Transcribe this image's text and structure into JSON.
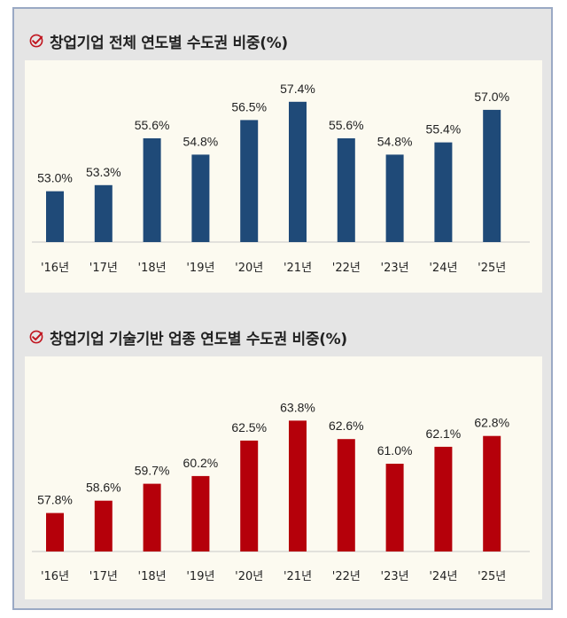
{
  "colors": {
    "series1": "#1f4a78",
    "series2": "#b5000a",
    "panel_bg": "#fcfaf0",
    "frame_bg": "#e5e5e5",
    "check_icon": "#c0141e"
  },
  "icons": {
    "title_icon": "check-circle-icon"
  },
  "chart_data": [
    {
      "type": "bar",
      "title": "창업기업 전체 연도별 수도권 비중(%)",
      "categories": [
        "'16년",
        "'17년",
        "'18년",
        "'19년",
        "'20년",
        "'21년",
        "'22년",
        "'23년",
        "'24년",
        "'25년"
      ],
      "values": [
        53.0,
        53.3,
        55.6,
        54.8,
        56.5,
        57.4,
        55.6,
        54.8,
        55.4,
        57.0
      ],
      "value_labels": [
        "53.0%",
        "53.3%",
        "55.6%",
        "54.8%",
        "56.5%",
        "57.4%",
        "55.6%",
        "54.8%",
        "55.4%",
        "57.0%"
      ],
      "ylim": [
        50.5,
        58.0
      ],
      "grid": false,
      "color": "#1f4a78"
    },
    {
      "type": "bar",
      "title": "창업기업 기술기반 업종 연도별 수도권 비중(%)",
      "categories": [
        "'16년",
        "'17년",
        "'18년",
        "'19년",
        "'20년",
        "'21년",
        "'22년",
        "'23년",
        "'24년",
        "'25년"
      ],
      "values": [
        57.8,
        58.6,
        59.7,
        60.2,
        62.5,
        63.8,
        62.6,
        61.0,
        62.1,
        62.8
      ],
      "value_labels": [
        "57.8%",
        "58.6%",
        "59.7%",
        "60.2%",
        "62.5%",
        "63.8%",
        "62.6%",
        "61.0%",
        "62.1%",
        "62.8%"
      ],
      "ylim": [
        55.3,
        64.8
      ],
      "grid": false,
      "color": "#b5000a"
    }
  ]
}
